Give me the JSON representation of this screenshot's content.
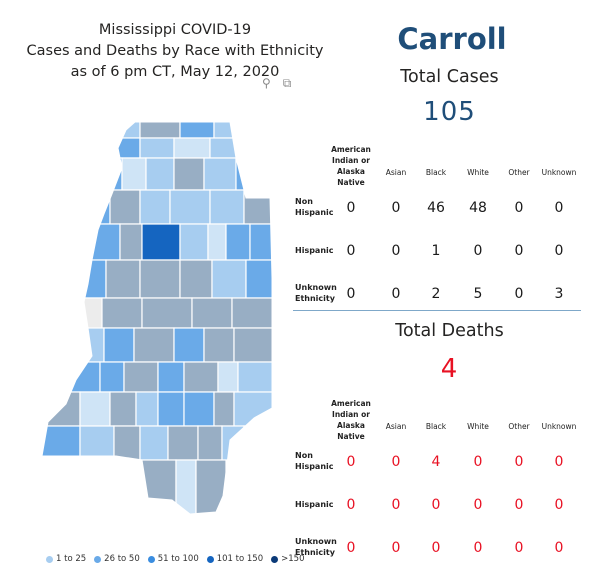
{
  "title": {
    "line1": "Mississippi COVID-19",
    "line2": "Cases and Deaths by Race with Ethnicity",
    "line3": "as of 6 pm CT, May 12, 2020"
  },
  "header_icons": {
    "pin": "pin-icon",
    "focus": "focus-mode-icon"
  },
  "county_name": "Carroll",
  "cases": {
    "label": "Total Cases",
    "total": "105",
    "columns": [
      "American Indian or Alaska Native",
      "Asian",
      "Black",
      "White",
      "Other",
      "Unknown"
    ],
    "rows": [
      {
        "label": "Non Hispanic",
        "values": [
          "0",
          "0",
          "46",
          "48",
          "0",
          "0"
        ]
      },
      {
        "label": "Hispanic",
        "values": [
          "0",
          "0",
          "1",
          "0",
          "0",
          "0"
        ]
      },
      {
        "label": "Unknown Ethnicity",
        "values": [
          "0",
          "0",
          "2",
          "5",
          "0",
          "3"
        ]
      }
    ]
  },
  "deaths": {
    "label": "Total Deaths",
    "total": "4",
    "columns": [
      "American Indian or Alaska Native",
      "Asian",
      "Black",
      "White",
      "Other",
      "Unknown"
    ],
    "rows": [
      {
        "label": "Non Hispanic",
        "values": [
          "0",
          "0",
          "4",
          "0",
          "0",
          "0"
        ]
      },
      {
        "label": "Hispanic",
        "values": [
          "0",
          "0",
          "0",
          "0",
          "0",
          "0"
        ]
      },
      {
        "label": "Unknown Ethnicity",
        "values": [
          "0",
          "0",
          "0",
          "0",
          "0",
          "0"
        ]
      }
    ]
  },
  "legend": [
    {
      "label": "1 to 25",
      "color": "#a7cdf0"
    },
    {
      "label": "26 to 50",
      "color": "#6aaae8"
    },
    {
      "label": "51 to 100",
      "color": "#3a8de0"
    },
    {
      "label": "101 to 150",
      "color": "#1565c0"
    },
    {
      "label": ">150",
      "color": "#0b3a78"
    }
  ],
  "colors": {
    "county_title": "#1f4e79",
    "total_cases": "#1f4e79",
    "total_deaths": "#e81123",
    "selected_county": "#1565c0",
    "shaded_county": "#98aec4"
  }
}
